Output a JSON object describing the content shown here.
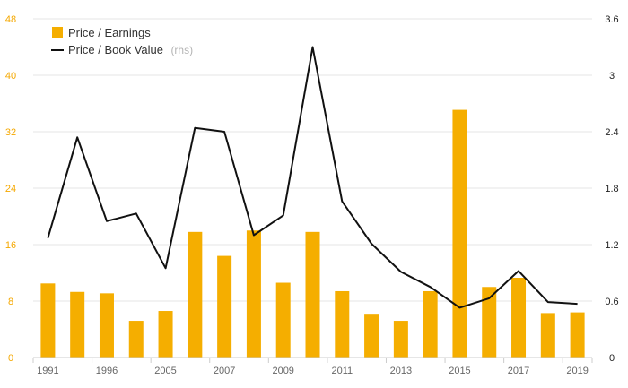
{
  "chart_data": {
    "type": "bar+line",
    "colors": {
      "bar": "#f5ae00",
      "line": "#111111",
      "grid": "#e6e6e6",
      "left_axis": "#f5a800",
      "right_axis": "#222222"
    },
    "categories": [
      "1991",
      "",
      "1996",
      "",
      "2005",
      "",
      "2007",
      "",
      "2009",
      "",
      "2011",
      "",
      "2013",
      "",
      "2015",
      "",
      "2017",
      "",
      "2019"
    ],
    "x_tick_labels": [
      "1991",
      "1996",
      "2005",
      "2007",
      "2009",
      "2011",
      "2013",
      "2015",
      "2017",
      "2019"
    ],
    "series": [
      {
        "name": "Price / Earnings",
        "axis": "left",
        "type": "bar",
        "values": [
          10.5,
          9.3,
          9.1,
          5.2,
          6.6,
          17.8,
          14.4,
          18.0,
          10.6,
          17.8,
          9.4,
          6.2,
          5.2,
          9.4,
          35.1,
          10.0,
          11.3,
          6.3,
          6.4
        ]
      },
      {
        "name": "Price / Book Value",
        "axis": "right",
        "type": "line",
        "values": [
          1.27,
          2.34,
          1.45,
          1.53,
          0.95,
          2.44,
          2.4,
          1.3,
          1.51,
          3.3,
          1.66,
          1.21,
          0.91,
          0.75,
          0.53,
          0.63,
          0.92,
          0.59,
          0.57
        ]
      }
    ],
    "left_axis": {
      "min": 0,
      "max": 48,
      "ticks": [
        "0",
        "8",
        "16",
        "24",
        "32",
        "40",
        "48"
      ]
    },
    "right_axis": {
      "min": 0,
      "max": 3.6,
      "ticks": [
        "0",
        "0.6",
        "1.2",
        "1.8",
        "2.4",
        "3",
        "3.6"
      ]
    },
    "legend": {
      "position": "top-left",
      "items": [
        {
          "label": "Price / Earnings",
          "note": ""
        },
        {
          "label": "Price / Book Value",
          "note": "(rhs)"
        }
      ]
    },
    "grid": true
  }
}
